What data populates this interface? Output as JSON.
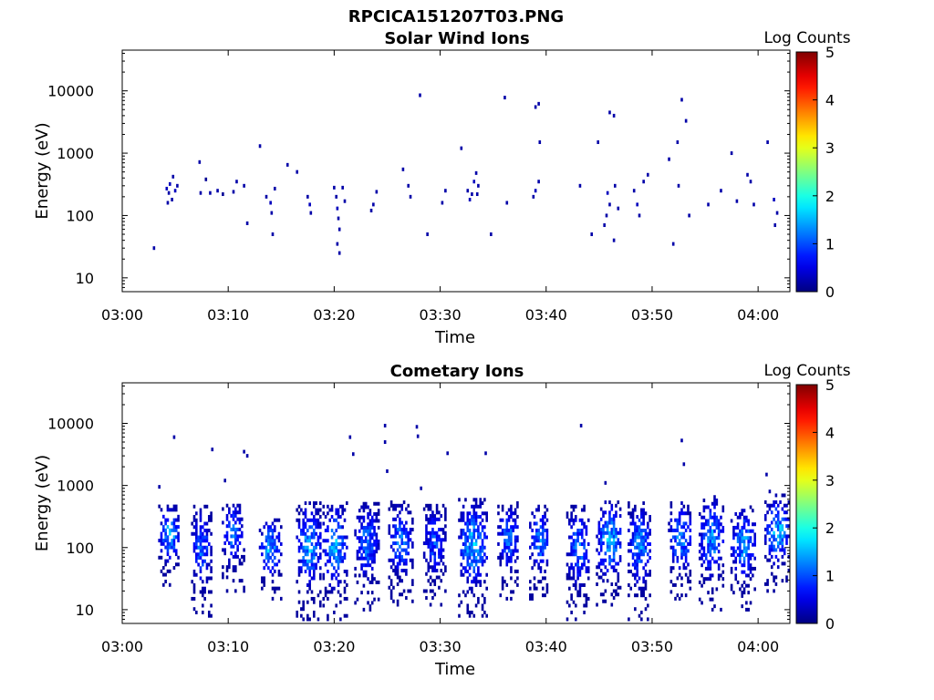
{
  "figure_title": "RPCICA151207T03.PNG",
  "chart_data": [
    {
      "type": "heatmap",
      "title": "Solar Wind Ions",
      "xlabel": "Time",
      "ylabel": "Energy (eV)",
      "x_ticks": [
        "03:00",
        "03:10",
        "03:20",
        "03:30",
        "03:40",
        "03:50",
        "04:00"
      ],
      "xlim_minutes": [
        0,
        63
      ],
      "y_scale": "log",
      "y_ticks": [
        "10",
        "100",
        "1000",
        "10000"
      ],
      "ylim": [
        6,
        45000
      ],
      "colorbar": {
        "label": "Log Counts",
        "ticks": [
          "0",
          "1",
          "2",
          "3",
          "4",
          "5"
        ],
        "range": [
          0,
          5
        ]
      },
      "cells": [
        [
          3.0,
          30,
          0.2
        ],
        [
          4.2,
          270,
          0.3
        ],
        [
          4.5,
          320,
          0.3
        ],
        [
          4.8,
          420,
          0.2
        ],
        [
          4.4,
          230,
          0.2
        ],
        [
          4.7,
          180,
          0.2
        ],
        [
          5.0,
          250,
          0.3
        ],
        [
          4.3,
          160,
          0.2
        ],
        [
          5.2,
          300,
          0.2
        ],
        [
          7.3,
          720,
          0.2
        ],
        [
          7.4,
          230,
          0.2
        ],
        [
          7.9,
          380,
          0.1
        ],
        [
          8.3,
          230,
          0.2
        ],
        [
          9.0,
          250,
          0.2
        ],
        [
          9.5,
          220,
          0.1
        ],
        [
          10.8,
          350,
          0.2
        ],
        [
          10.5,
          240,
          0.2
        ],
        [
          11.5,
          300,
          0.2
        ],
        [
          11.8,
          75,
          0.2
        ],
        [
          13.0,
          1300,
          0.2
        ],
        [
          13.6,
          200,
          0.2
        ],
        [
          14.0,
          160,
          0.3
        ],
        [
          14.1,
          110,
          0.2
        ],
        [
          14.2,
          50,
          0.2
        ],
        [
          14.4,
          270,
          0.2
        ],
        [
          15.6,
          650,
          0.2
        ],
        [
          16.5,
          500,
          0.2
        ],
        [
          17.5,
          200,
          0.2
        ],
        [
          17.7,
          150,
          0.3
        ],
        [
          17.8,
          110,
          0.2
        ],
        [
          20.0,
          280,
          0.2
        ],
        [
          20.2,
          200,
          0.2
        ],
        [
          20.3,
          130,
          0.3
        ],
        [
          20.4,
          90,
          0.2
        ],
        [
          20.5,
          60,
          0.2
        ],
        [
          20.3,
          35,
          0.2
        ],
        [
          20.5,
          25,
          0.2
        ],
        [
          20.8,
          280,
          0.2
        ],
        [
          21.0,
          170,
          0.2
        ],
        [
          23.5,
          120,
          0.2
        ],
        [
          23.7,
          150,
          0.2
        ],
        [
          24.0,
          240,
          0.2
        ],
        [
          26.5,
          550,
          0.2
        ],
        [
          27.0,
          300,
          0.2
        ],
        [
          27.2,
          200,
          0.2
        ],
        [
          28.1,
          8500,
          0.2
        ],
        [
          28.8,
          50,
          0.2
        ],
        [
          30.2,
          160,
          0.2
        ],
        [
          30.5,
          250,
          0.2
        ],
        [
          32.0,
          1200,
          0.2
        ],
        [
          32.6,
          250,
          0.2
        ],
        [
          32.8,
          180,
          0.3
        ],
        [
          33.0,
          220,
          0.2
        ],
        [
          33.2,
          350,
          0.3
        ],
        [
          33.4,
          480,
          0.2
        ],
        [
          33.6,
          300,
          0.2
        ],
        [
          33.5,
          220,
          0.2
        ],
        [
          34.8,
          50,
          0.2
        ],
        [
          36.1,
          7800,
          0.2
        ],
        [
          36.3,
          160,
          0.2
        ],
        [
          39.0,
          5500,
          0.2
        ],
        [
          39.3,
          6200,
          0.2
        ],
        [
          39.4,
          1500,
          0.2
        ],
        [
          39.0,
          250,
          0.3
        ],
        [
          39.3,
          350,
          0.2
        ],
        [
          38.8,
          200,
          0.2
        ],
        [
          43.2,
          300,
          0.2
        ],
        [
          44.9,
          1500,
          0.2
        ],
        [
          44.3,
          50,
          0.2
        ],
        [
          46.0,
          4500,
          0.2
        ],
        [
          46.4,
          4000,
          0.2
        ],
        [
          45.8,
          230,
          0.3
        ],
        [
          46.0,
          150,
          0.2
        ],
        [
          45.7,
          100,
          0.2
        ],
        [
          45.5,
          70,
          0.2
        ],
        [
          46.5,
          300,
          0.2
        ],
        [
          46.8,
          130,
          0.2
        ],
        [
          46.4,
          40,
          0.2
        ],
        [
          48.3,
          250,
          0.2
        ],
        [
          48.6,
          150,
          0.3
        ],
        [
          48.8,
          100,
          0.2
        ],
        [
          49.2,
          350,
          0.2
        ],
        [
          49.6,
          450,
          0.2
        ],
        [
          51.6,
          800,
          0.2
        ],
        [
          52.0,
          35,
          0.2
        ],
        [
          52.4,
          1500,
          0.2
        ],
        [
          52.5,
          300,
          0.2
        ],
        [
          52.8,
          7200,
          0.2
        ],
        [
          53.2,
          3300,
          0.2
        ],
        [
          53.5,
          100,
          0.2
        ],
        [
          55.3,
          150,
          0.2
        ],
        [
          56.5,
          250,
          0.2
        ],
        [
          57.5,
          1000,
          0.2
        ],
        [
          58.0,
          170,
          0.2
        ],
        [
          59.0,
          450,
          0.2
        ],
        [
          59.3,
          350,
          0.2
        ],
        [
          59.6,
          150,
          0.2
        ],
        [
          60.9,
          1500,
          0.2
        ],
        [
          61.5,
          180,
          0.3
        ],
        [
          61.8,
          110,
          0.2
        ],
        [
          61.6,
          70,
          0.2
        ]
      ]
    },
    {
      "type": "heatmap",
      "title": "Cometary Ions",
      "xlabel": "Time",
      "ylabel": "Energy (eV)",
      "x_ticks": [
        "03:00",
        "03:10",
        "03:20",
        "03:30",
        "03:40",
        "03:50",
        "04:00"
      ],
      "xlim_minutes": [
        0,
        63
      ],
      "y_scale": "log",
      "y_ticks": [
        "10",
        "100",
        "1000",
        "10000"
      ],
      "ylim": [
        6,
        45000
      ],
      "colorbar": {
        "label": "Log Counts",
        "ticks": [
          "0",
          "1",
          "2",
          "3",
          "4",
          "5"
        ],
        "range": [
          0,
          5
        ]
      },
      "sparse": [
        [
          3.5,
          950,
          0.2
        ],
        [
          4.9,
          6000,
          0.2
        ],
        [
          8.5,
          3800,
          0.2
        ],
        [
          9.7,
          1200,
          0.2
        ],
        [
          11.5,
          3500,
          0.2
        ],
        [
          11.8,
          3000,
          0.2
        ],
        [
          21.5,
          6000,
          0.2
        ],
        [
          21.8,
          3200,
          0.2
        ],
        [
          24.8,
          9200,
          0.2
        ],
        [
          24.8,
          5000,
          0.2
        ],
        [
          25.0,
          1700,
          0.2
        ],
        [
          27.8,
          8800,
          0.2
        ],
        [
          27.9,
          6200,
          0.2
        ],
        [
          28.2,
          900,
          0.2
        ],
        [
          30.7,
          3300,
          0.2
        ],
        [
          34.3,
          3300,
          0.2
        ],
        [
          43.3,
          9200,
          0.2
        ],
        [
          45.6,
          1100,
          0.2
        ],
        [
          52.8,
          5300,
          0.2
        ],
        [
          53.0,
          2200,
          0.2
        ],
        [
          60.8,
          1500,
          0.2
        ],
        [
          61.1,
          800,
          0.2
        ]
      ],
      "bursts": [
        {
          "x_min": [
            3.5,
            5.5
          ],
          "e_max": 500,
          "e_min": 25,
          "peak": 1.7
        },
        {
          "x_min": [
            6.6,
            8.4
          ],
          "e_max": 500,
          "e_min": 7,
          "peak": 1.3
        },
        {
          "x_min": [
            9.5,
            11.5
          ],
          "e_max": 600,
          "e_min": 20,
          "peak": 1.4
        },
        {
          "x_min": [
            13.0,
            15.0
          ],
          "e_max": 300,
          "e_min": 15,
          "peak": 1.8
        },
        {
          "x_min": [
            16.5,
            18.8
          ],
          "e_max": 550,
          "e_min": 7,
          "peak": 1.7
        },
        {
          "x_min": [
            19.0,
            21.2
          ],
          "e_max": 550,
          "e_min": 7,
          "peak": 1.8
        },
        {
          "x_min": [
            22.0,
            24.2
          ],
          "e_max": 550,
          "e_min": 10,
          "peak": 1.4
        },
        {
          "x_min": [
            25.2,
            27.4
          ],
          "e_max": 550,
          "e_min": 12,
          "peak": 1.4
        },
        {
          "x_min": [
            28.5,
            30.5
          ],
          "e_max": 500,
          "e_min": 12,
          "peak": 1.2
        },
        {
          "x_min": [
            31.8,
            34.5
          ],
          "e_max": 600,
          "e_min": 7,
          "peak": 1.8
        },
        {
          "x_min": [
            35.5,
            37.5
          ],
          "e_max": 550,
          "e_min": 15,
          "peak": 1.3
        },
        {
          "x_min": [
            38.5,
            40.3
          ],
          "e_max": 500,
          "e_min": 15,
          "peak": 1.5
        },
        {
          "x_min": [
            42.0,
            44.2
          ],
          "e_max": 500,
          "e_min": 7,
          "peak": 1.4
        },
        {
          "x_min": [
            44.8,
            47.2
          ],
          "e_max": 550,
          "e_min": 12,
          "peak": 1.9
        },
        {
          "x_min": [
            47.8,
            50.0
          ],
          "e_max": 550,
          "e_min": 7,
          "peak": 1.5
        },
        {
          "x_min": [
            51.6,
            53.8
          ],
          "e_max": 550,
          "e_min": 15,
          "peak": 1.6
        },
        {
          "x_min": [
            54.5,
            56.8
          ],
          "e_max": 700,
          "e_min": 10,
          "peak": 1.6
        },
        {
          "x_min": [
            57.5,
            59.8
          ],
          "e_max": 500,
          "e_min": 10,
          "peak": 1.6
        },
        {
          "x_min": [
            60.7,
            63.0
          ],
          "e_max": 700,
          "e_min": 20,
          "peak": 1.8
        }
      ]
    }
  ]
}
